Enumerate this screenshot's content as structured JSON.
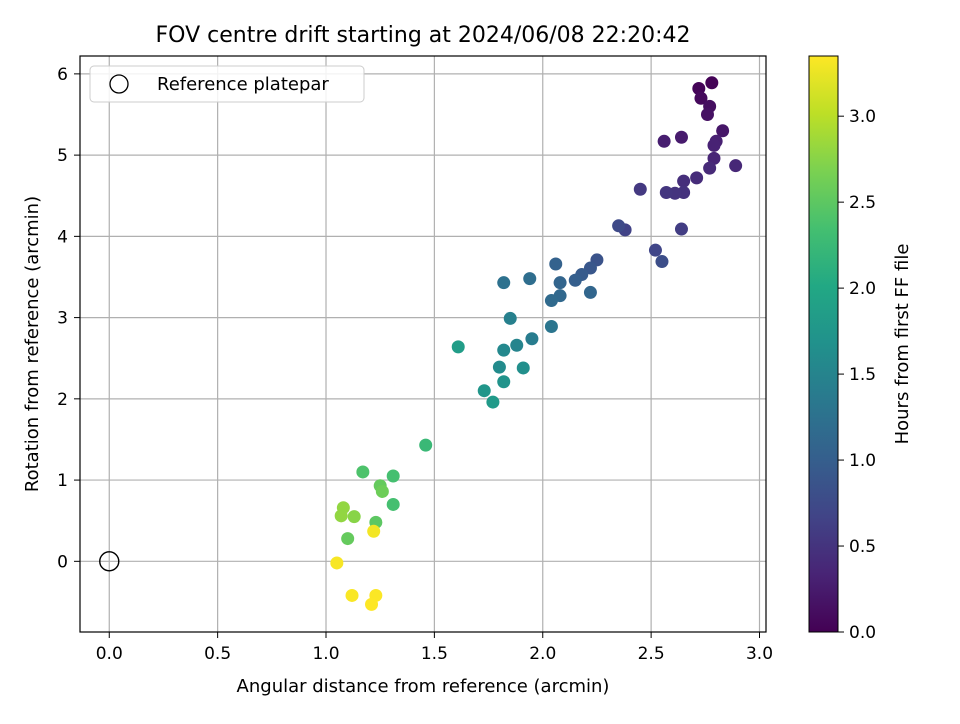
{
  "chart_data": {
    "type": "scatter",
    "title": "FOV centre drift starting at 2024/06/08 22:20:42",
    "xlabel": "Angular distance from reference (arcmin)",
    "ylabel": "Rotation from reference (arcmin)",
    "xlim": [
      -0.135,
      3.03
    ],
    "ylim": [
      -0.87,
      6.22
    ],
    "xticks": [
      "0.0",
      "0.5",
      "1.0",
      "1.5",
      "2.0",
      "2.5",
      "3.0"
    ],
    "yticks": [
      "0",
      "1",
      "2",
      "3",
      "4",
      "5",
      "6"
    ],
    "grid": true,
    "legend": {
      "position": "top-left",
      "entries": [
        "Reference platepar"
      ]
    },
    "reference_point": {
      "x": 0.0,
      "y": 0.0
    },
    "colorbar": {
      "label": "Hours from first FF file",
      "colormap": "viridis",
      "range": [
        0.0,
        3.35
      ],
      "ticks": [
        "0.0",
        "0.5",
        "1.0",
        "1.5",
        "2.0",
        "2.5",
        "3.0"
      ]
    },
    "points": [
      {
        "x": 2.78,
        "y": 5.89,
        "c": 0.02
      },
      {
        "x": 2.72,
        "y": 5.82,
        "c": 0.04
      },
      {
        "x": 2.73,
        "y": 5.7,
        "c": 0.08
      },
      {
        "x": 2.77,
        "y": 5.6,
        "c": 0.12
      },
      {
        "x": 2.76,
        "y": 5.5,
        "c": 0.15
      },
      {
        "x": 2.83,
        "y": 5.3,
        "c": 0.2
      },
      {
        "x": 2.64,
        "y": 5.22,
        "c": 0.25
      },
      {
        "x": 2.56,
        "y": 5.17,
        "c": 0.28
      },
      {
        "x": 2.8,
        "y": 5.17,
        "c": 0.3
      },
      {
        "x": 2.79,
        "y": 5.12,
        "c": 0.32
      },
      {
        "x": 2.79,
        "y": 4.96,
        "c": 0.35
      },
      {
        "x": 2.89,
        "y": 4.87,
        "c": 0.38
      },
      {
        "x": 2.77,
        "y": 4.84,
        "c": 0.4
      },
      {
        "x": 2.71,
        "y": 4.72,
        "c": 0.42
      },
      {
        "x": 2.65,
        "y": 4.68,
        "c": 0.45
      },
      {
        "x": 2.65,
        "y": 4.54,
        "c": 0.48
      },
      {
        "x": 2.61,
        "y": 4.53,
        "c": 0.5
      },
      {
        "x": 2.57,
        "y": 4.54,
        "c": 0.52
      },
      {
        "x": 2.45,
        "y": 4.58,
        "c": 0.55
      },
      {
        "x": 2.64,
        "y": 4.09,
        "c": 0.6
      },
      {
        "x": 2.38,
        "y": 4.08,
        "c": 0.65
      },
      {
        "x": 2.52,
        "y": 3.83,
        "c": 0.7
      },
      {
        "x": 2.35,
        "y": 4.13,
        "c": 0.75
      },
      {
        "x": 2.55,
        "y": 3.69,
        "c": 0.8
      },
      {
        "x": 2.25,
        "y": 3.71,
        "c": 0.85
      },
      {
        "x": 2.22,
        "y": 3.61,
        "c": 0.9
      },
      {
        "x": 2.18,
        "y": 3.53,
        "c": 0.95
      },
      {
        "x": 2.15,
        "y": 3.46,
        "c": 1.0
      },
      {
        "x": 2.06,
        "y": 3.66,
        "c": 1.05
      },
      {
        "x": 2.08,
        "y": 3.43,
        "c": 1.08
      },
      {
        "x": 2.22,
        "y": 3.31,
        "c": 1.1
      },
      {
        "x": 2.08,
        "y": 3.27,
        "c": 1.12
      },
      {
        "x": 2.04,
        "y": 3.21,
        "c": 1.15
      },
      {
        "x": 1.94,
        "y": 3.48,
        "c": 1.2
      },
      {
        "x": 1.82,
        "y": 3.43,
        "c": 1.25
      },
      {
        "x": 2.04,
        "y": 2.89,
        "c": 1.3
      },
      {
        "x": 1.95,
        "y": 2.74,
        "c": 1.4
      },
      {
        "x": 1.85,
        "y": 2.99,
        "c": 1.45
      },
      {
        "x": 1.88,
        "y": 2.66,
        "c": 1.5
      },
      {
        "x": 1.82,
        "y": 2.6,
        "c": 1.55
      },
      {
        "x": 1.8,
        "y": 2.39,
        "c": 1.6
      },
      {
        "x": 1.91,
        "y": 2.38,
        "c": 1.65
      },
      {
        "x": 1.82,
        "y": 2.21,
        "c": 1.7
      },
      {
        "x": 1.73,
        "y": 2.1,
        "c": 1.75
      },
      {
        "x": 1.77,
        "y": 1.96,
        "c": 1.8
      },
      {
        "x": 1.61,
        "y": 2.64,
        "c": 1.85
      },
      {
        "x": 1.46,
        "y": 1.43,
        "c": 2.25
      },
      {
        "x": 1.31,
        "y": 0.7,
        "c": 2.35
      },
      {
        "x": 1.31,
        "y": 1.05,
        "c": 2.35
      },
      {
        "x": 1.17,
        "y": 1.1,
        "c": 2.4
      },
      {
        "x": 1.23,
        "y": 0.48,
        "c": 2.5
      },
      {
        "x": 1.1,
        "y": 0.28,
        "c": 2.55
      },
      {
        "x": 1.25,
        "y": 0.93,
        "c": 2.55
      },
      {
        "x": 1.26,
        "y": 0.86,
        "c": 2.6
      },
      {
        "x": 1.13,
        "y": 0.55,
        "c": 2.75
      },
      {
        "x": 1.07,
        "y": 0.56,
        "c": 2.8
      },
      {
        "x": 1.08,
        "y": 0.66,
        "c": 2.8
      },
      {
        "x": 1.22,
        "y": 0.37,
        "c": 3.3
      },
      {
        "x": 1.05,
        "y": -0.02,
        "c": 3.32
      },
      {
        "x": 1.12,
        "y": -0.42,
        "c": 3.33
      },
      {
        "x": 1.23,
        "y": -0.42,
        "c": 3.34
      },
      {
        "x": 1.21,
        "y": -0.53,
        "c": 3.35
      }
    ]
  }
}
